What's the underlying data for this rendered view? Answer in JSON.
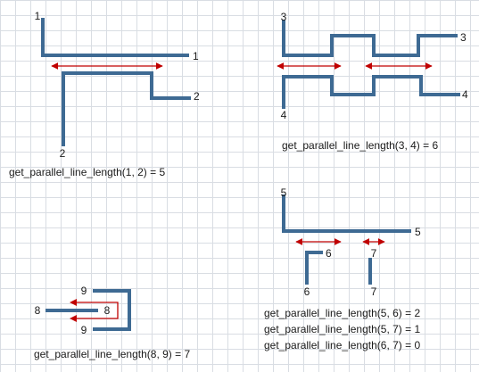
{
  "colors": {
    "wire": "#3e6a93",
    "arrow": "#c00000",
    "grid": "#d9dde3",
    "background": "#ffffff"
  },
  "examples": [
    {
      "name": "example-1-2",
      "labels": {
        "line1_start": "1",
        "line1_end": "1",
        "line2_end": "2",
        "line2_start": "2"
      },
      "captions": [
        "get_parallel_line_length(1, 2) = 5"
      ]
    },
    {
      "name": "example-3-4",
      "labels": {
        "line3_start": "3",
        "line3_end": "3",
        "line4_start": "4",
        "line4_end": "4"
      },
      "captions": [
        "get_parallel_line_length(3, 4) = 6"
      ]
    },
    {
      "name": "example-8-9",
      "labels": {
        "line9_top": "9",
        "line9_bottom": "9",
        "line8_start": "8",
        "line8_end": "8"
      },
      "captions": [
        "get_parallel_line_length(8, 9) = 7"
      ]
    },
    {
      "name": "example-5-6-7",
      "labels": {
        "line5_start": "5",
        "line5_end": "5",
        "line6_end": "6",
        "line6_start": "6",
        "line7_end": "7",
        "line7_start": "7"
      },
      "captions": [
        "get_parallel_line_length(5, 6) = 2",
        "get_parallel_line_length(5, 7) = 1",
        "get_parallel_line_length(6, 7) = 0"
      ]
    }
  ]
}
